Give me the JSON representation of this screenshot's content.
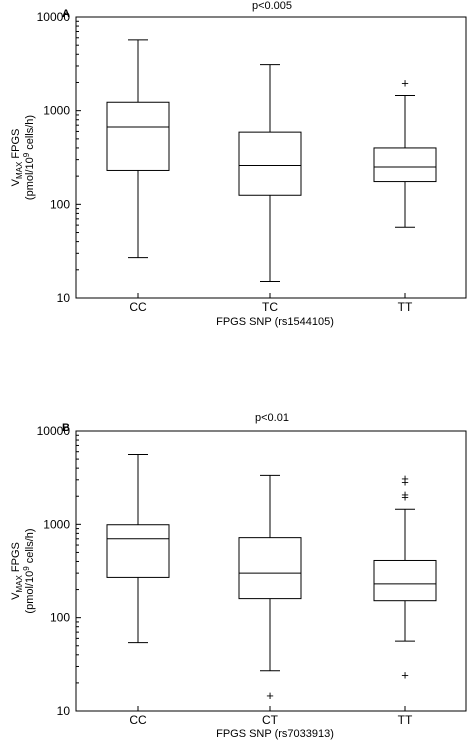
{
  "chart_data": [
    {
      "type": "box",
      "panel_label": "A",
      "annotation": "p<0.005",
      "ylabel_line1_main": "V",
      "ylabel_line1_sub": "MAX",
      "ylabel_line1_rest": " FPGS",
      "ylabel_line2_pre": "(pmol/10",
      "ylabel_line2_sup": "9",
      "ylabel_line2_post": " cells/h)",
      "xlabel": "FPGS SNP (rs1544105)",
      "yscale": "log",
      "ylim": [
        10,
        10000
      ],
      "yticks": [
        10,
        100,
        1000,
        10000
      ],
      "ytick_labels": [
        "10",
        "100",
        "1000",
        "10000"
      ],
      "categories": [
        "CC",
        "TC",
        "TT"
      ],
      "boxes": [
        {
          "min": 27,
          "q1": 230,
          "median": 670,
          "q3": 1230,
          "max": 5700,
          "outliers": []
        },
        {
          "min": 15,
          "q1": 125,
          "median": 260,
          "q3": 590,
          "max": 3100,
          "outliers": []
        },
        {
          "min": 57,
          "q1": 175,
          "median": 250,
          "q3": 400,
          "max": 1450,
          "outliers": [
            1950
          ]
        }
      ]
    },
    {
      "type": "box",
      "panel_label": "B",
      "annotation": "p<0.01",
      "ylabel_line1_main": "V",
      "ylabel_line1_sub": "MAX",
      "ylabel_line1_rest": " FPGS",
      "ylabel_line2_pre": "(pmol/10",
      "ylabel_line2_sup": "9",
      "ylabel_line2_post": " cells/h)",
      "xlabel": "FPGS SNP (rs7033913)",
      "yscale": "log",
      "ylim": [
        10,
        10000
      ],
      "yticks": [
        10,
        100,
        1000,
        10000
      ],
      "ytick_labels": [
        "10",
        "100",
        "1000",
        "10000"
      ],
      "categories": [
        "CC",
        "CT",
        "TT"
      ],
      "boxes": [
        {
          "min": 54,
          "q1": 270,
          "median": 700,
          "q3": 990,
          "max": 5600,
          "outliers": []
        },
        {
          "min": 27,
          "q1": 160,
          "median": 300,
          "q3": 720,
          "max": 3350,
          "outliers": [
            14.5
          ]
        },
        {
          "min": 56,
          "q1": 152,
          "median": 230,
          "q3": 410,
          "max": 1450,
          "outliers": [
            24,
            1950,
            2050,
            2800,
            3050
          ]
        }
      ]
    }
  ]
}
